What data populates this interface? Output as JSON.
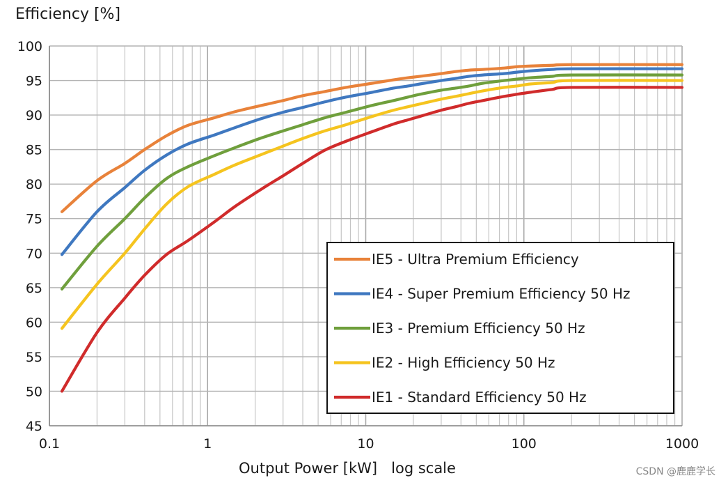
{
  "chart_data": {
    "type": "line",
    "title": "",
    "ylabel": "Efficiency [%]",
    "xlabel": "Output Power [kW]",
    "xlabel_note": "log scale",
    "x_scale": "log",
    "xlim": [
      0.1,
      1000
    ],
    "ylim": [
      45,
      100
    ],
    "x_ticks": [
      0.1,
      1,
      10,
      100,
      1000
    ],
    "x_tick_labels": [
      "0.1",
      "1",
      "10",
      "100",
      "1000"
    ],
    "y_ticks": [
      45,
      50,
      55,
      60,
      65,
      70,
      75,
      80,
      85,
      90,
      95,
      100
    ],
    "y_tick_labels": [
      "45",
      "50",
      "55",
      "60",
      "65",
      "70",
      "75",
      "80",
      "85",
      "90",
      "95",
      "100"
    ],
    "grid": true,
    "legend_position": "bottom-right",
    "series": [
      {
        "name": "IE5 - Ultra Premium Efficiency",
        "color": "#e8823a",
        "x": [
          0.12,
          0.2,
          0.3,
          0.4,
          0.55,
          0.75,
          1.1,
          1.5,
          2.2,
          3,
          4,
          5.5,
          7.5,
          11,
          15,
          18.5,
          22,
          30,
          37,
          45,
          55,
          75,
          90,
          110,
          150,
          200,
          1000
        ],
        "y": [
          76.0,
          80.5,
          83.0,
          85.0,
          87.0,
          88.5,
          89.6,
          90.5,
          91.4,
          92.1,
          92.8,
          93.4,
          94.0,
          94.6,
          95.1,
          95.4,
          95.6,
          96.0,
          96.3,
          96.5,
          96.6,
          96.8,
          97.0,
          97.1,
          97.2,
          97.3,
          97.3
        ]
      },
      {
        "name": "IE4 - Super Premium Efficiency 50 Hz",
        "color": "#3f78c0",
        "x": [
          0.12,
          0.2,
          0.3,
          0.4,
          0.55,
          0.75,
          1.1,
          1.5,
          2.2,
          3,
          4,
          5.5,
          7.5,
          11,
          15,
          18.5,
          22,
          30,
          37,
          45,
          55,
          75,
          90,
          110,
          150,
          200,
          1000
        ],
        "y": [
          69.8,
          76.0,
          79.5,
          82.0,
          84.2,
          85.8,
          87.1,
          88.2,
          89.5,
          90.4,
          91.1,
          91.9,
          92.6,
          93.3,
          93.9,
          94.2,
          94.5,
          95.0,
          95.3,
          95.6,
          95.8,
          96.0,
          96.2,
          96.4,
          96.6,
          96.7,
          96.7
        ]
      },
      {
        "name": "IE3 - Premium Efficiency 50 Hz",
        "color": "#6f9f3c",
        "x": [
          0.12,
          0.2,
          0.3,
          0.4,
          0.55,
          0.75,
          1.1,
          1.5,
          2.2,
          3,
          4,
          5.5,
          7.5,
          11,
          15,
          18.5,
          22,
          30,
          37,
          45,
          55,
          75,
          90,
          110,
          150,
          200,
          1000
        ],
        "y": [
          64.8,
          71.0,
          75.0,
          78.0,
          80.8,
          82.5,
          84.1,
          85.3,
          86.7,
          87.7,
          88.6,
          89.6,
          90.4,
          91.4,
          92.1,
          92.6,
          93.0,
          93.6,
          93.9,
          94.2,
          94.6,
          95.0,
          95.2,
          95.4,
          95.6,
          95.8,
          95.8
        ]
      },
      {
        "name": "IE2 - High Efficiency 50 Hz",
        "color": "#f5c41f",
        "x": [
          0.12,
          0.2,
          0.3,
          0.4,
          0.55,
          0.75,
          1.1,
          1.5,
          2.2,
          3,
          4,
          5.5,
          7.5,
          11,
          15,
          18.5,
          22,
          30,
          37,
          45,
          55,
          75,
          90,
          110,
          150,
          200,
          1000
        ],
        "y": [
          59.1,
          65.5,
          70.0,
          73.5,
          77.1,
          79.6,
          81.4,
          82.8,
          84.3,
          85.5,
          86.6,
          87.7,
          88.6,
          89.8,
          90.7,
          91.2,
          91.6,
          92.3,
          92.7,
          93.1,
          93.5,
          94.0,
          94.2,
          94.5,
          94.7,
          95.0,
          95.0
        ]
      },
      {
        "name": "IE1 - Standard Efficiency 50 Hz",
        "color": "#d02b2b",
        "x": [
          0.12,
          0.2,
          0.3,
          0.4,
          0.55,
          0.75,
          1.1,
          1.5,
          2.2,
          3,
          4,
          5.5,
          7.5,
          11,
          15,
          18.5,
          22,
          30,
          37,
          45,
          55,
          75,
          90,
          110,
          150,
          200,
          1000
        ],
        "y": [
          50.0,
          58.5,
          63.5,
          66.8,
          69.8,
          71.8,
          74.5,
          76.8,
          79.3,
          81.2,
          83.0,
          84.9,
          86.2,
          87.6,
          88.7,
          89.3,
          89.8,
          90.7,
          91.2,
          91.7,
          92.1,
          92.7,
          93.0,
          93.3,
          93.7,
          94.0,
          94.0
        ]
      }
    ]
  },
  "watermark": "CSDN @鹿鹿学长"
}
